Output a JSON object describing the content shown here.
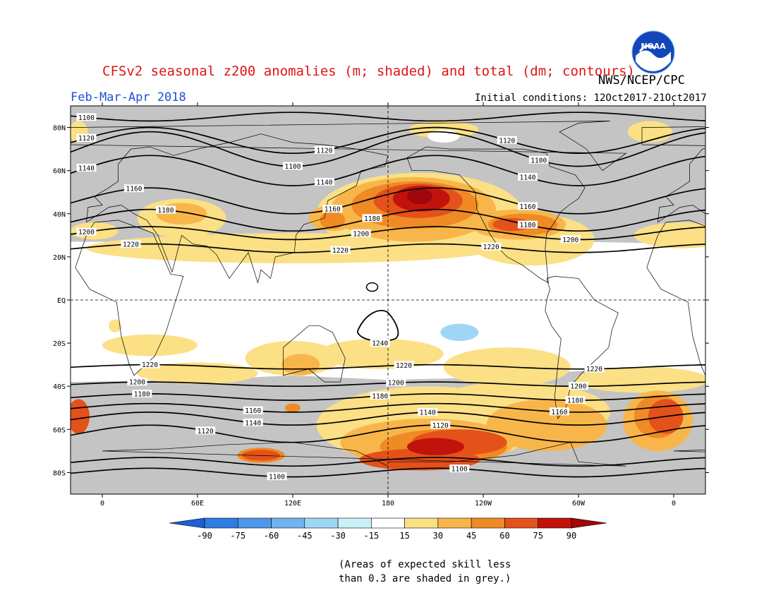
{
  "header": {
    "title": "CFSv2 seasonal z200 anomalies (m; shaded) and total (dm; contours)",
    "agency": "NWS/NCEP/CPC",
    "season": "Feb-Mar-Apr 2018",
    "initial_conditions": "Initial conditions: 12Oct2017-21Oct2017",
    "logo_text": "NOAA"
  },
  "map": {
    "projection": "equirectangular",
    "lon_range": [
      -20,
      380
    ],
    "lat_range": [
      -90,
      90
    ],
    "lat_ticks": [
      {
        "lat": 80,
        "label": "80N"
      },
      {
        "lat": 60,
        "label": "60N"
      },
      {
        "lat": 40,
        "label": "40N"
      },
      {
        "lat": 20,
        "label": "20N"
      },
      {
        "lat": 0,
        "label": "EQ"
      },
      {
        "lat": -20,
        "label": "20S"
      },
      {
        "lat": -40,
        "label": "40S"
      },
      {
        "lat": -60,
        "label": "60S"
      },
      {
        "lat": -80,
        "label": "80S"
      }
    ],
    "lon_ticks": [
      {
        "lon": 0,
        "label": "0"
      },
      {
        "lon": 60,
        "label": "60E"
      },
      {
        "lon": 120,
        "label": "120E"
      },
      {
        "lon": 180,
        "label": "180"
      },
      {
        "lon": 240,
        "label": "120W"
      },
      {
        "lon": 300,
        "label": "60W"
      },
      {
        "lon": 360,
        "label": "0"
      }
    ],
    "contours_dm": [
      {
        "value": 1100,
        "lat": 85,
        "amp": -2,
        "label_lons": [
          -10
        ]
      },
      {
        "value": 1100,
        "lat": 70,
        "amp": 8,
        "label_lons": [
          120,
          275
        ]
      },
      {
        "value": 1100,
        "lat": -80,
        "amp": 2,
        "label_lons": [
          110,
          225
        ]
      },
      {
        "value": 1120,
        "lat": 74,
        "amp": 6,
        "label_lons": [
          -10,
          140,
          255
        ]
      },
      {
        "value": 1140,
        "lat": 60,
        "amp": 7,
        "label_lons": [
          -10,
          140,
          268
        ]
      },
      {
        "value": 1160,
        "lat": 46,
        "amp": 6,
        "label_lons": [
          20,
          145,
          268
        ]
      },
      {
        "value": 1180,
        "lat": 37,
        "amp": 5,
        "label_lons": [
          40,
          170,
          268
        ]
      },
      {
        "value": 1200,
        "lat": 31,
        "amp": 3,
        "label_lons": [
          -10,
          163,
          295
        ]
      },
      {
        "value": 1220,
        "lat": 24,
        "amp": 2,
        "label_lons": [
          18,
          150,
          245
        ]
      },
      {
        "value": 1240,
        "lat": -12,
        "amp": 0,
        "label_lons": [
          175
        ]
      },
      {
        "value": 1220,
        "lat": -31,
        "amp": 1,
        "label_lons": [
          30,
          190,
          310
        ]
      },
      {
        "value": 1200,
        "lat": -39,
        "amp": 1,
        "label_lons": [
          22,
          185,
          300
        ]
      },
      {
        "value": 1180,
        "lat": -45,
        "amp": 1.5,
        "label_lons": [
          25,
          175,
          298
        ]
      },
      {
        "value": 1160,
        "lat": -50,
        "amp": 2,
        "label_lons": [
          95,
          288
        ]
      },
      {
        "value": 1140,
        "lat": -55,
        "amp": 3,
        "label_lons": [
          95,
          205
        ]
      },
      {
        "value": 1120,
        "lat": -62,
        "amp": 4,
        "label_lons": [
          65,
          213
        ]
      },
      {
        "value": 1100,
        "lat": -75,
        "amp": 2,
        "label_lons": []
      }
    ],
    "anomaly_regions_m": [
      {
        "region": "North Pacific / Alaska max",
        "lon": 200,
        "lat": 46,
        "value": 90
      },
      {
        "region": "Eastern North America",
        "lon": 265,
        "lat": 35,
        "value": 60
      },
      {
        "region": "Japan / NW Pacific",
        "lon": 145,
        "lat": 38,
        "value": 45
      },
      {
        "region": "Europe / Mediterranean",
        "lon": 50,
        "lat": 40,
        "value": 30
      },
      {
        "region": "Antarctic Pacific sector",
        "lon": 215,
        "lat": -70,
        "value": 75
      },
      {
        "region": "South Atlantic",
        "lon": 355,
        "lat": -55,
        "value": 60
      },
      {
        "region": "Southern Ocean 90E",
        "lon": 100,
        "lat": -72,
        "value": 45
      },
      {
        "region": "Central Pacific",
        "lon": 225,
        "lat": -15,
        "value": -30
      }
    ],
    "grey_note": "Areas of expected skill less than 0.3 are shaded in grey"
  },
  "colorbar": {
    "labels": [
      "-90",
      "-75",
      "-60",
      "-45",
      "-30",
      "-15",
      "15",
      "30",
      "45",
      "60",
      "75",
      "90"
    ],
    "colors": [
      "#1c5fd6",
      "#2f7de3",
      "#4d98ea",
      "#71b3ef",
      "#a0d6f5",
      "#c9f2f6",
      "#ffffff",
      "#fbe085",
      "#f8b64a",
      "#ef8a24",
      "#e4511a",
      "#c2120c",
      "#a0060a"
    ]
  },
  "notes": {
    "line1": "(Areas of expected skill less",
    "line2": "than 0.3 are shaded in grey.)"
  }
}
